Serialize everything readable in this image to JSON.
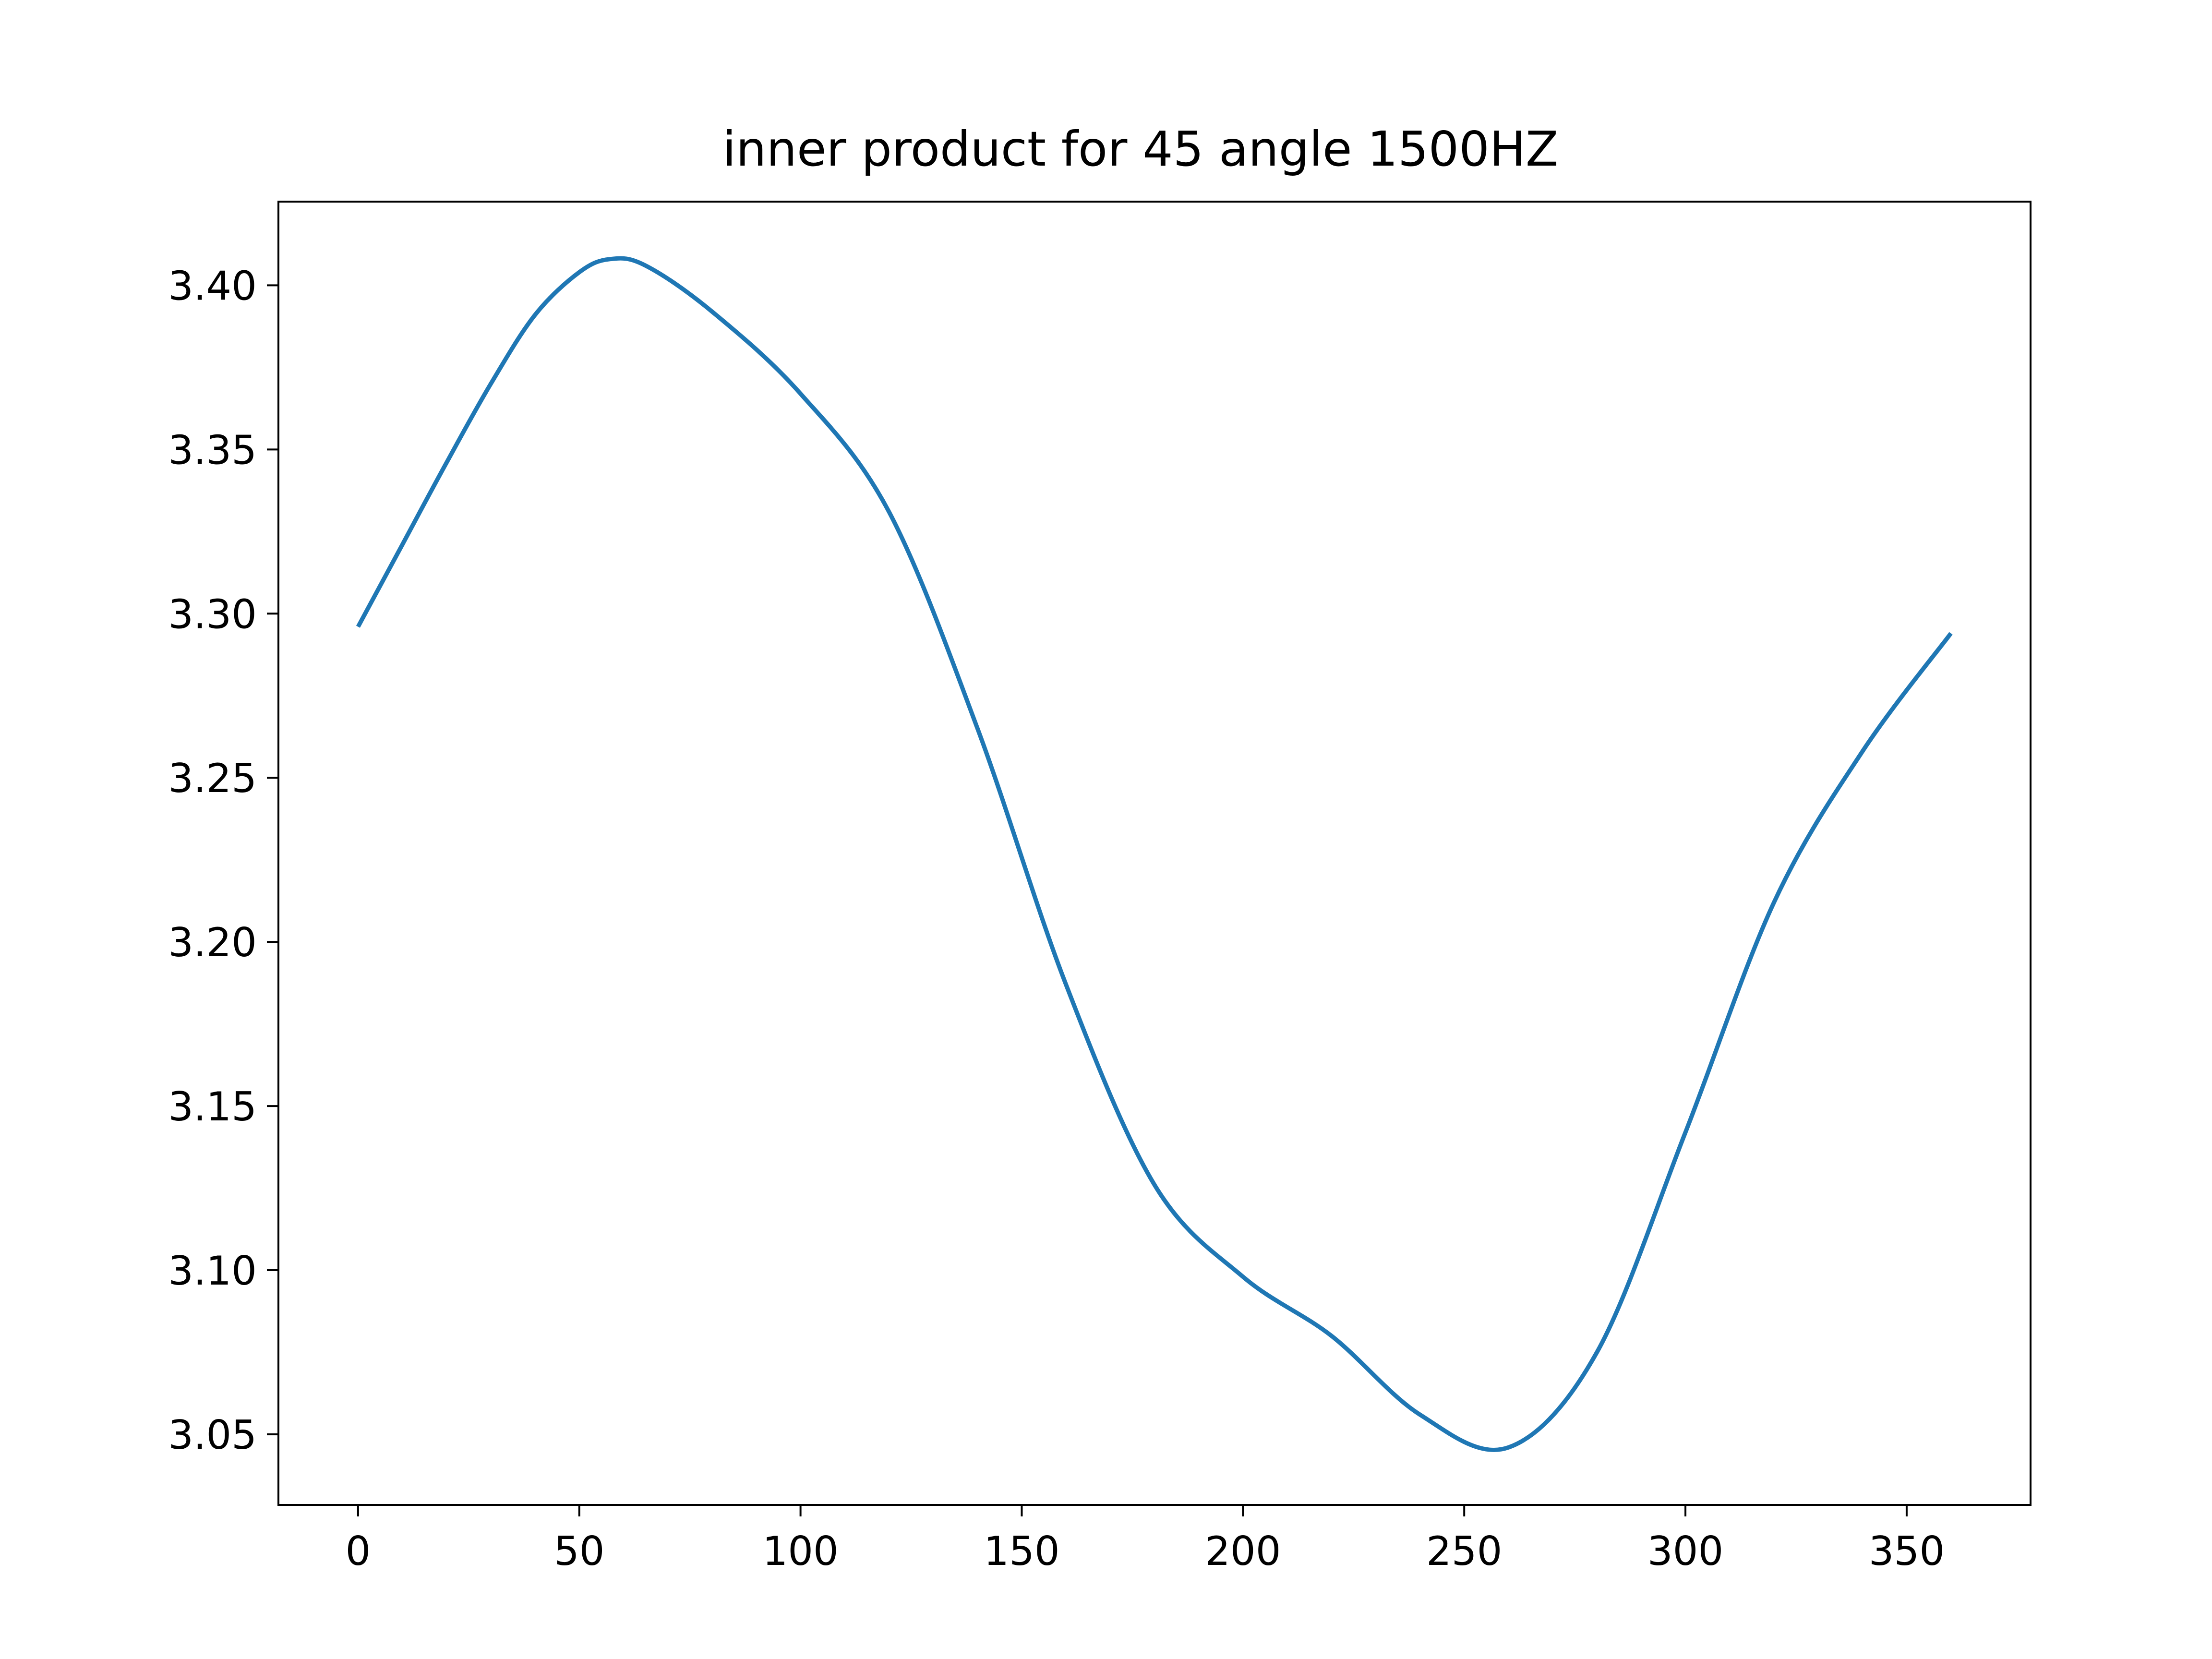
{
  "chart_data": {
    "type": "line",
    "title": "inner product for 45 angle 1500HZ",
    "xlabel": "",
    "ylabel": "",
    "xlim": [
      -18,
      378
    ],
    "ylim": [
      3.0285,
      3.4255
    ],
    "grid": false,
    "legend": "none",
    "x_ticks": [
      0,
      50,
      100,
      150,
      200,
      250,
      300,
      350
    ],
    "x_tick_labels": [
      "0",
      "50",
      "100",
      "150",
      "200",
      "250",
      "300",
      "350"
    ],
    "y_ticks": [
      3.05,
      3.1,
      3.15,
      3.2,
      3.25,
      3.3,
      3.35,
      3.4
    ],
    "y_tick_labels": [
      "3.05",
      "3.10",
      "3.15",
      "3.20",
      "3.25",
      "3.30",
      "3.35",
      "3.40"
    ],
    "series": [
      {
        "color": "#1f77b4",
        "x": [
          0,
          10,
          20,
          30,
          40,
          50,
          57,
          65,
          80,
          100,
          120,
          140,
          160,
          180,
          200,
          220,
          240,
          260,
          280,
          300,
          320,
          340,
          360
        ],
        "y": [
          3.296,
          3.321,
          3.346,
          3.37,
          3.391,
          3.404,
          3.408,
          3.406,
          3.392,
          3.367,
          3.331,
          3.265,
          3.187,
          3.126,
          3.098,
          3.08,
          3.056,
          3.046,
          3.075,
          3.142,
          3.212,
          3.258,
          3.294
        ]
      }
    ]
  }
}
